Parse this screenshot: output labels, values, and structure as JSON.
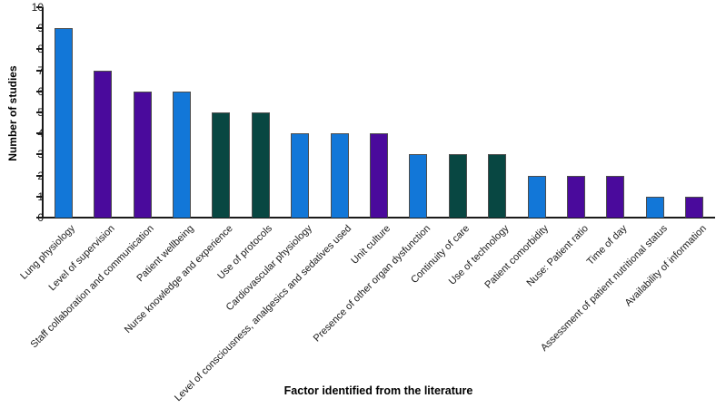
{
  "chart_data": {
    "type": "bar",
    "title": "",
    "xlabel": "Factor identified from the literature",
    "ylabel": "Number of studies",
    "ylim": [
      0,
      10
    ],
    "yticks": [
      0,
      1,
      2,
      3,
      4,
      5,
      6,
      7,
      8,
      9,
      10
    ],
    "grid": false,
    "legend": "none",
    "categories": [
      "Lung physiology",
      "Level of supervision",
      "Staff collaboration and communication",
      "Patient wellbeing",
      "Nurse knowledge and experience",
      "Use of protocols",
      "Cardiovascular physiology",
      "Level of consciousness, analgesics and sedatives used",
      "Unit culture",
      "Presence of other organ dysfunction",
      "Continuity of care",
      "Use of technology",
      "Patient comorbidity",
      "Nuse: Patient ratio",
      "Time of day",
      "Assessment of patient nutritional status",
      "Availability of information"
    ],
    "values": [
      9,
      7,
      6,
      6,
      5,
      5,
      4,
      4,
      4,
      3,
      3,
      3,
      2,
      2,
      2,
      1,
      1
    ],
    "bar_color_keys": [
      "blue",
      "purple",
      "purple",
      "blue",
      "teal",
      "teal",
      "blue",
      "blue",
      "purple",
      "blue",
      "teal",
      "teal",
      "blue",
      "purple",
      "purple",
      "blue",
      "purple"
    ],
    "palette": {
      "blue": "#1277d8",
      "purple": "#4a0a9c",
      "teal": "#084742"
    },
    "axis_color": "#1a1a1a",
    "bar_border_color": "#4d4d4d"
  }
}
